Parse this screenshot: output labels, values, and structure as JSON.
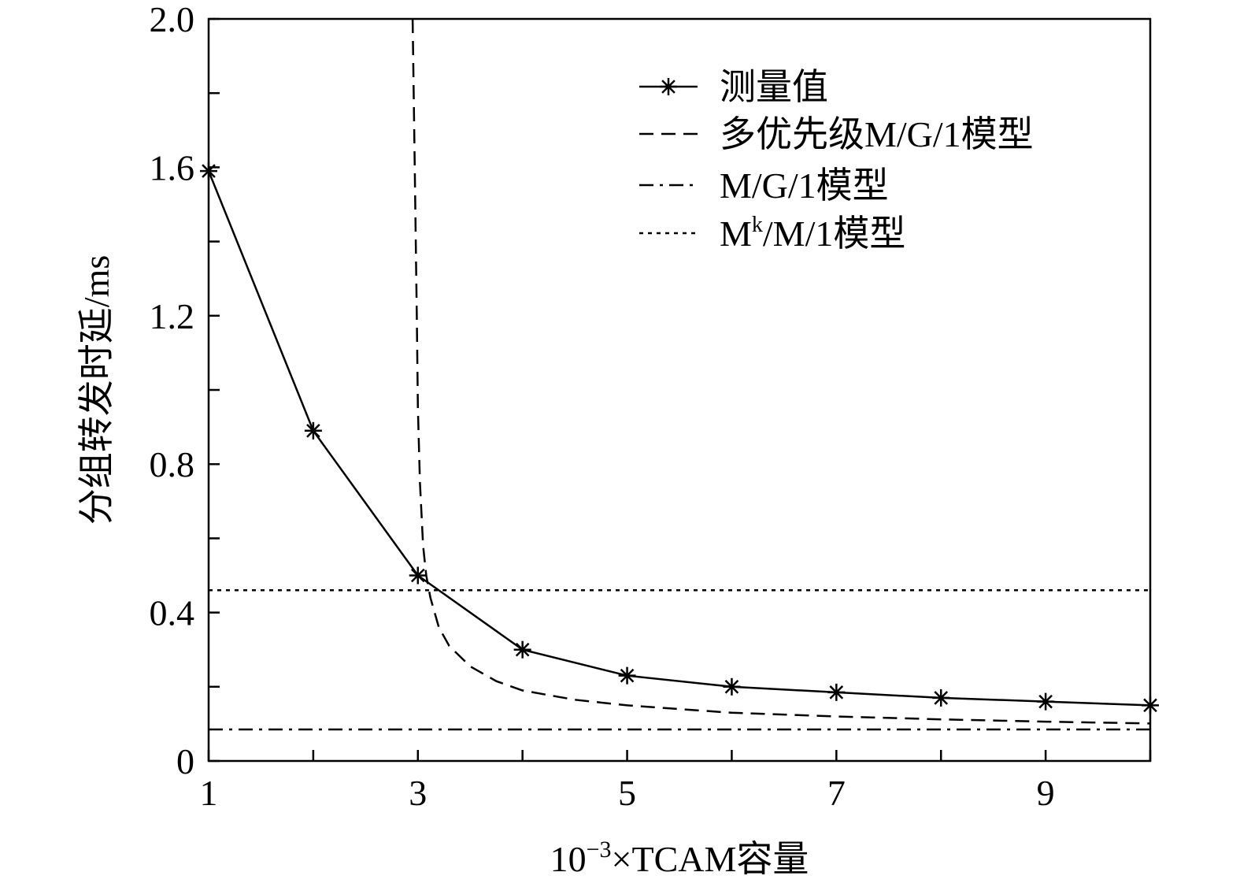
{
  "chart_data": {
    "type": "line",
    "title": "",
    "xlabel": "10⁻³×TCAM容量",
    "xlabel_parts": {
      "base": "10",
      "exp": "−3",
      "rest": "×TCAM容量"
    },
    "ylabel": "分组转发时延/ms",
    "xlim": [
      1,
      10
    ],
    "ylim": [
      0,
      2.0
    ],
    "xticks": [
      1,
      3,
      5,
      7,
      9
    ],
    "xtick_labels": [
      "1",
      "3",
      "5",
      "7",
      "9"
    ],
    "yticks": [
      0,
      0.4,
      0.8,
      1.2,
      1.6,
      2.0
    ],
    "ytick_labels": [
      "0",
      "0.4",
      "0.8",
      "1.2",
      "1.6",
      "2.0"
    ],
    "grid": false,
    "legend_position": "top-right",
    "series": [
      {
        "name": "测量值",
        "style": "solid-star",
        "x": [
          1,
          2,
          3,
          4,
          5,
          6,
          7,
          8,
          9,
          10
        ],
        "y": [
          1.59,
          0.89,
          0.5,
          0.3,
          0.23,
          0.2,
          0.185,
          0.17,
          0.16,
          0.15
        ]
      },
      {
        "name": "多优先级M/G/1模型",
        "style": "dashed",
        "x": [
          2.95,
          2.97,
          2.99,
          3.0,
          3.02,
          3.05,
          3.08,
          3.12,
          3.2,
          3.3,
          3.5,
          3.75,
          4.0,
          4.5,
          5.0,
          6.0,
          7.0,
          8.0,
          9.0,
          10.0
        ],
        "y": [
          2.0,
          1.6,
          1.2,
          0.95,
          0.75,
          0.58,
          0.5,
          0.44,
          0.36,
          0.31,
          0.255,
          0.215,
          0.19,
          0.165,
          0.15,
          0.13,
          0.12,
          0.112,
          0.106,
          0.101
        ]
      },
      {
        "name": "M/G/1模型",
        "style": "dash-dot",
        "x": [
          1,
          10
        ],
        "y": [
          0.085,
          0.085
        ]
      },
      {
        "name": "Mk/M/1模型",
        "legend_parts": {
          "base": "M",
          "sup": "k",
          "rest": "/M/1模型"
        },
        "style": "dotted",
        "x": [
          1,
          10
        ],
        "y": [
          0.46,
          0.46
        ]
      }
    ]
  }
}
